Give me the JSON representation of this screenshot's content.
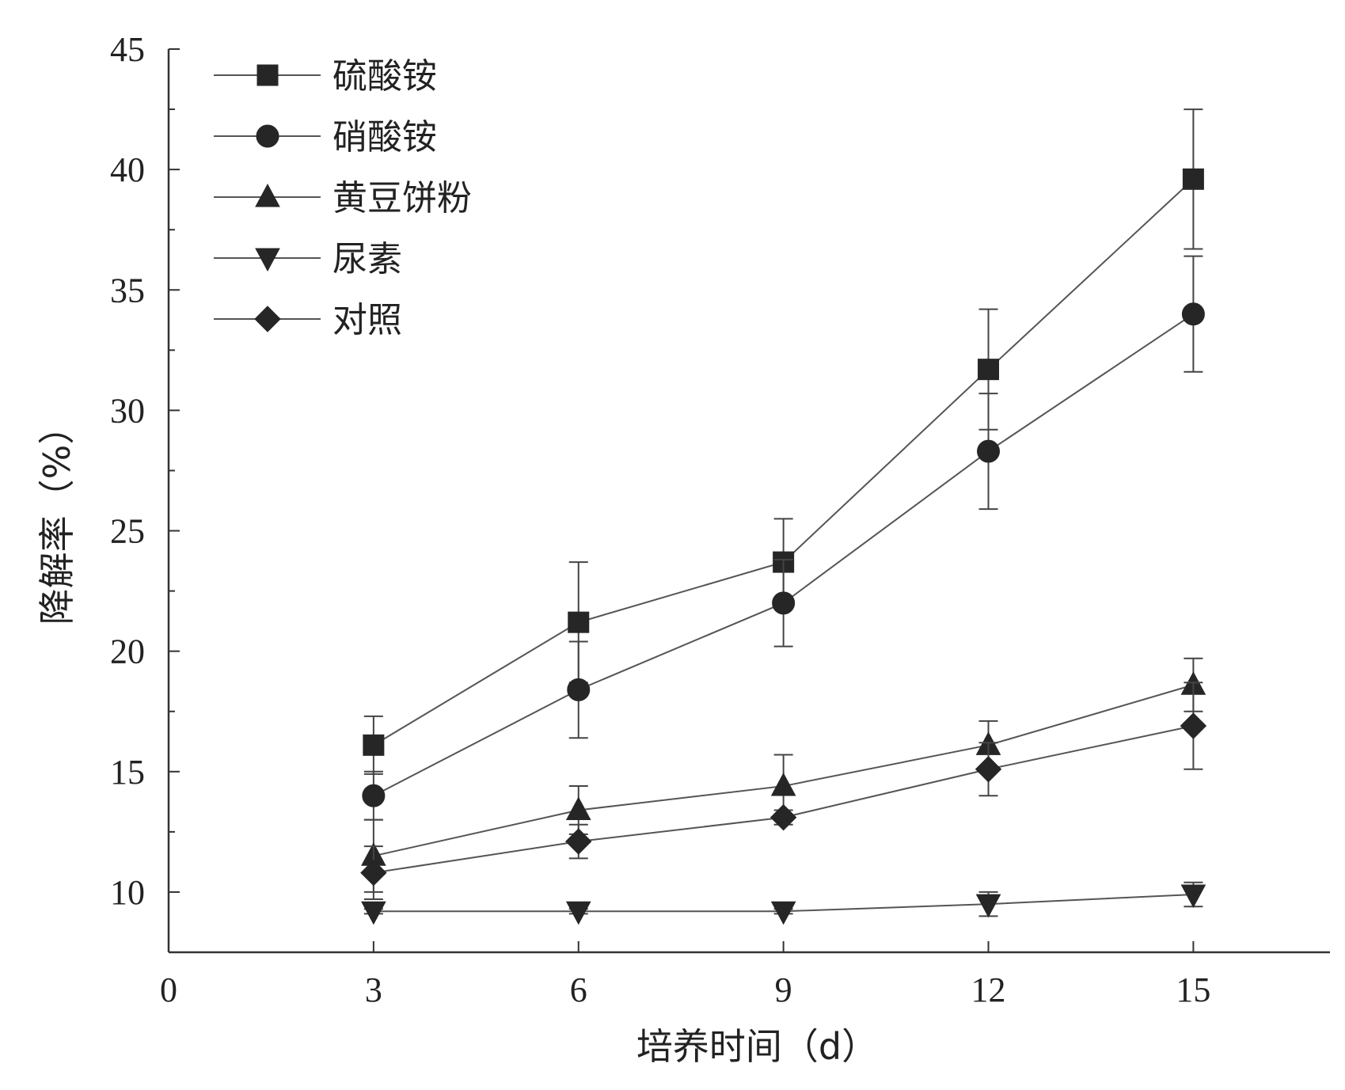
{
  "chart_data": {
    "type": "line",
    "xlabel": "培养时间（d）",
    "ylabel": "降解率（%）",
    "xlim": [
      0,
      17
    ],
    "ylim": [
      7.5,
      45
    ],
    "x_ticks": [
      0,
      3,
      6,
      9,
      12,
      15
    ],
    "y_ticks": [
      10,
      15,
      20,
      25,
      30,
      35,
      40,
      45
    ],
    "grid": false,
    "legend_position": "top-left",
    "x": [
      3,
      6,
      9,
      12,
      15
    ],
    "series": [
      {
        "name": "硫酸铵",
        "marker": "square",
        "values": [
          16.1,
          21.2,
          23.7,
          31.7,
          39.6
        ],
        "errors": [
          1.2,
          2.5,
          1.8,
          2.5,
          2.9
        ]
      },
      {
        "name": "硝酸铵",
        "marker": "circle",
        "values": [
          14.0,
          18.4,
          22.0,
          28.3,
          34.0
        ],
        "errors": [
          1.0,
          2.0,
          1.8,
          2.4,
          2.4
        ]
      },
      {
        "name": "黄豆饼粉",
        "marker": "triangle-up",
        "values": [
          11.5,
          13.4,
          14.4,
          16.1,
          18.6
        ],
        "errors": [
          1.5,
          1.0,
          1.3,
          1.0,
          1.1
        ]
      },
      {
        "name": "尿素",
        "marker": "triangle-down",
        "values": [
          9.2,
          9.2,
          9.2,
          9.5,
          9.9
        ],
        "errors": [
          0.1,
          0.1,
          0.1,
          0.5,
          0.5
        ]
      },
      {
        "name": "对照",
        "marker": "diamond",
        "values": [
          10.8,
          12.1,
          13.1,
          15.1,
          16.9
        ],
        "errors": [
          1.1,
          0.7,
          0.3,
          1.1,
          1.8
        ]
      }
    ]
  }
}
